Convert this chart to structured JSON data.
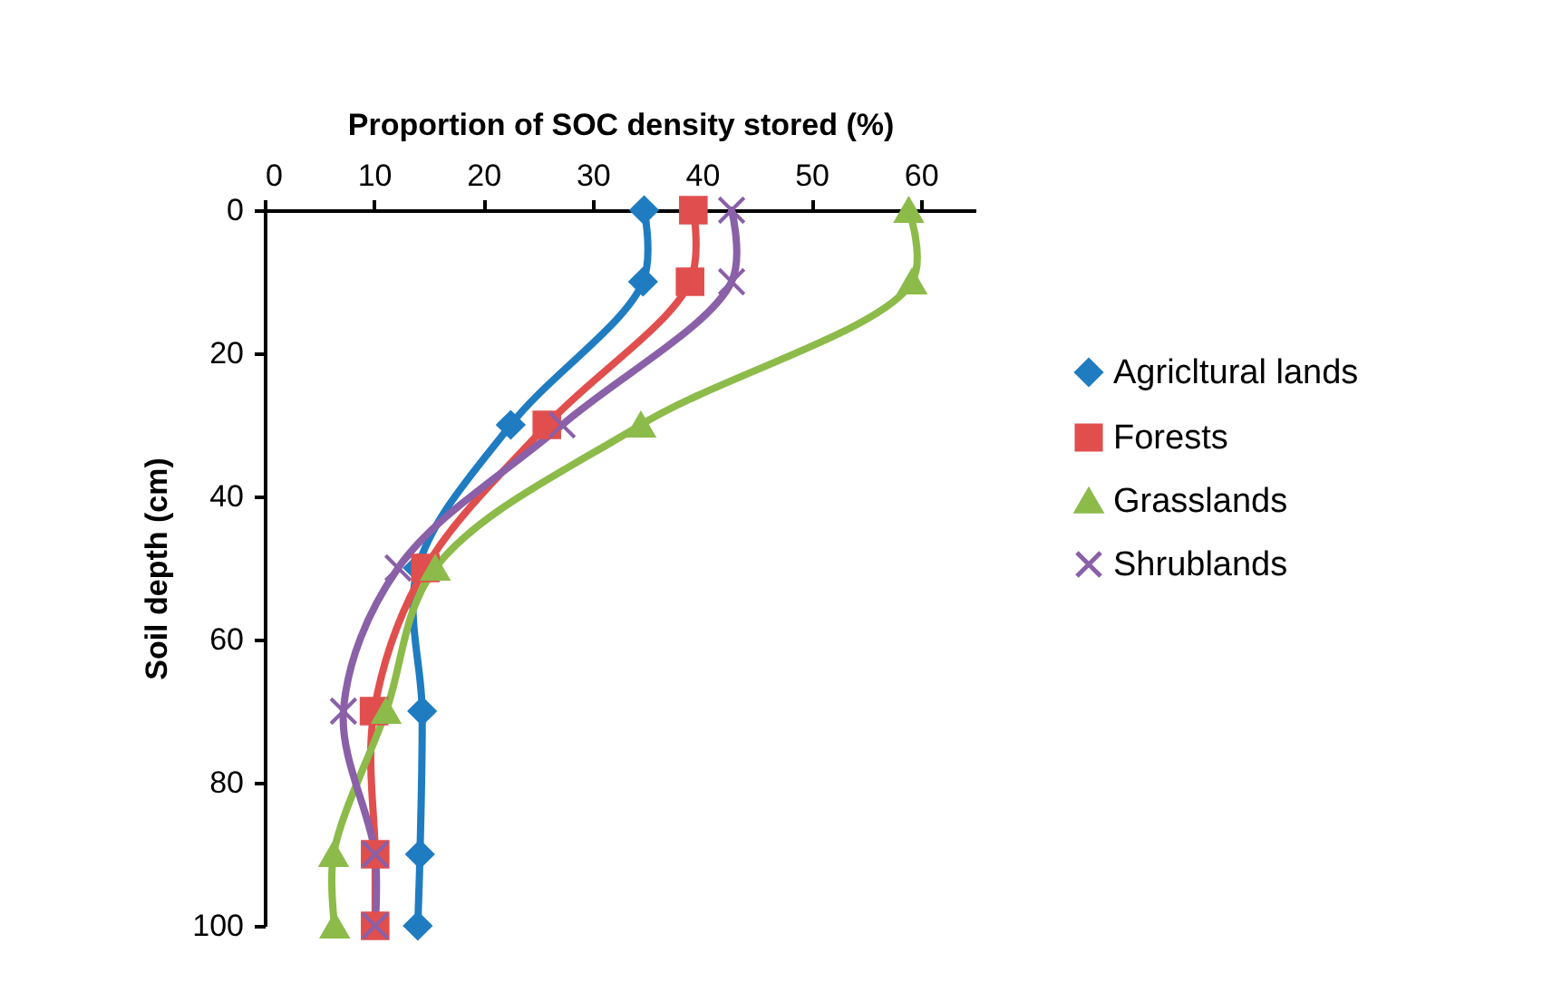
{
  "chart_data": {
    "type": "line",
    "xlabel": "Proportion of SOC density stored (%)",
    "ylabel": "Soil depth (cm)",
    "x": [
      0,
      10,
      30,
      50,
      70,
      90,
      100
    ],
    "series": [
      {
        "name": "Agricltural lands",
        "color": "#1f7cc1",
        "marker": "diamond",
        "values": [
          34.7,
          34.6,
          22.5,
          14,
          14.4,
          14.2,
          14
        ]
      },
      {
        "name": "Forests",
        "color": "#e04f4d",
        "marker": "square",
        "values": [
          39.2,
          38.9,
          25.8,
          14.7,
          10,
          10.1,
          10.1
        ]
      },
      {
        "name": "Grasslands",
        "color": "#8cbb4a",
        "marker": "triangle",
        "values": [
          58.9,
          59.2,
          34.4,
          15.6,
          11.1,
          6.3,
          6.4
        ]
      },
      {
        "name": "Shrublands",
        "color": "#8a60a8",
        "marker": "cross",
        "values": [
          42.7,
          42.7,
          27.2,
          12.2,
          7.2,
          10.1,
          10.1
        ]
      }
    ],
    "orientation": "horizontal",
    "xlim": [
      0,
      65
    ],
    "xticks": [
      0,
      10,
      20,
      30,
      40,
      50,
      60
    ],
    "ylim": [
      100,
      0
    ],
    "yticks": [
      0,
      20,
      40,
      60,
      80,
      100
    ],
    "grid": false,
    "legend": "right"
  }
}
